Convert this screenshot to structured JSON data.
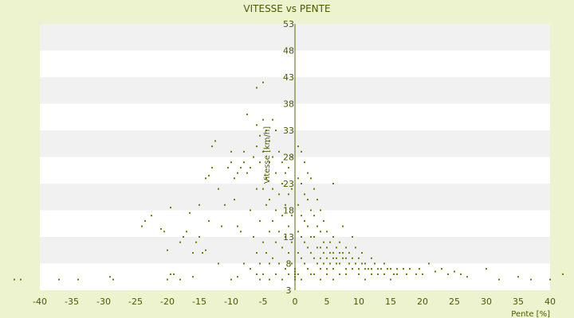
{
  "chart_data": {
    "type": "scatter",
    "title": "VITESSE vs PENTE",
    "xlabel": "Pente [%]",
    "ylabel": "Vitesse [km/h]",
    "xlim": [
      -40,
      42
    ],
    "ylim": [
      3,
      53
    ],
    "xticks": [
      -40,
      -35,
      -30,
      -25,
      -20,
      -15,
      -10,
      -5,
      0,
      5,
      10,
      15,
      20,
      25,
      30,
      35,
      40
    ],
    "yticks": [
      3,
      8,
      13,
      18,
      23,
      28,
      33,
      38,
      43,
      48,
      53
    ],
    "grid": "horizontal alternating bands",
    "legend": "none",
    "colors": {
      "background": "#eef3cf",
      "plot_band_light": "#ffffff",
      "plot_band_dark": "#f1f1f1",
      "point": "#6b7d00",
      "text": "#4a5a00",
      "axis": "#5a6a00"
    },
    "points": [
      [
        -44,
        5
      ],
      [
        -43,
        5
      ],
      [
        -37,
        5
      ],
      [
        -34,
        5
      ],
      [
        -29,
        5.5
      ],
      [
        -28.5,
        5
      ],
      [
        -24,
        15
      ],
      [
        -23.5,
        16
      ],
      [
        -22.5,
        17
      ],
      [
        -21,
        14.5
      ],
      [
        -20.5,
        14
      ],
      [
        -20,
        10.5
      ],
      [
        -19.5,
        18.5
      ],
      [
        -20,
        5
      ],
      [
        -19.5,
        6
      ],
      [
        -19,
        6
      ],
      [
        -18,
        12
      ],
      [
        -18,
        5
      ],
      [
        -17.5,
        13
      ],
      [
        -17,
        14
      ],
      [
        -16.5,
        17.5
      ],
      [
        -16,
        10
      ],
      [
        -16,
        5.5
      ],
      [
        -15.5,
        12
      ],
      [
        -15,
        13
      ],
      [
        -15,
        19
      ],
      [
        -14.5,
        10
      ],
      [
        -14,
        10.5
      ],
      [
        -14,
        24
      ],
      [
        -13.5,
        24.5
      ],
      [
        -13.5,
        16
      ],
      [
        -13,
        26
      ],
      [
        -13,
        30
      ],
      [
        -12.5,
        31
      ],
      [
        -12,
        22
      ],
      [
        -12,
        8
      ],
      [
        -11.5,
        15
      ],
      [
        -11,
        19
      ],
      [
        -10.5,
        26
      ],
      [
        -10,
        27
      ],
      [
        -10,
        29
      ],
      [
        -10,
        5
      ],
      [
        -9.5,
        20
      ],
      [
        -9.5,
        24
      ],
      [
        -9,
        25
      ],
      [
        -9,
        15
      ],
      [
        -9,
        5.5
      ],
      [
        -8.5,
        26
      ],
      [
        -8.5,
        14
      ],
      [
        -8,
        29
      ],
      [
        -8,
        27
      ],
      [
        -8,
        8
      ],
      [
        -7.5,
        36
      ],
      [
        -7.5,
        25
      ],
      [
        -7,
        18
      ],
      [
        -7,
        26
      ],
      [
        -7,
        7
      ],
      [
        -6.5,
        28
      ],
      [
        -6.5,
        13
      ],
      [
        -6,
        30
      ],
      [
        -6,
        34
      ],
      [
        -6,
        41
      ],
      [
        -6,
        22
      ],
      [
        -6,
        10
      ],
      [
        -6,
        6
      ],
      [
        -5.5,
        32
      ],
      [
        -5.5,
        27
      ],
      [
        -5.5,
        16
      ],
      [
        -5.5,
        8
      ],
      [
        -5.5,
        5
      ],
      [
        -5,
        35
      ],
      [
        -5,
        42
      ],
      [
        -5,
        29
      ],
      [
        -5,
        22
      ],
      [
        -5,
        12
      ],
      [
        -5,
        6
      ],
      [
        -4.5,
        33
      ],
      [
        -4.5,
        24
      ],
      [
        -4.5,
        19
      ],
      [
        -4.5,
        10
      ],
      [
        -4,
        31
      ],
      [
        -4,
        27
      ],
      [
        -4,
        20
      ],
      [
        -4,
        14
      ],
      [
        -4,
        8
      ],
      [
        -4,
        5
      ],
      [
        -3.5,
        35
      ],
      [
        -3.5,
        28
      ],
      [
        -3.5,
        22
      ],
      [
        -3.5,
        16
      ],
      [
        -3.5,
        9
      ],
      [
        -3,
        33
      ],
      [
        -3,
        25
      ],
      [
        -3,
        18
      ],
      [
        -3,
        12
      ],
      [
        -3,
        6
      ],
      [
        -2.5,
        29
      ],
      [
        -2.5,
        21
      ],
      [
        -2.5,
        14
      ],
      [
        -2.5,
        8
      ],
      [
        -2,
        27
      ],
      [
        -2,
        23
      ],
      [
        -2,
        17
      ],
      [
        -2,
        11
      ],
      [
        -2,
        5
      ],
      [
        -1.5,
        25
      ],
      [
        -1.5,
        19
      ],
      [
        -1.5,
        13
      ],
      [
        -1.5,
        7
      ],
      [
        -1,
        26
      ],
      [
        -1,
        21
      ],
      [
        -1,
        15
      ],
      [
        -1,
        10
      ],
      [
        -1,
        6
      ],
      [
        -0.5,
        28
      ],
      [
        -0.5,
        22
      ],
      [
        -0.5,
        17
      ],
      [
        -0.5,
        12
      ],
      [
        -0.5,
        8
      ],
      [
        0,
        6
      ],
      [
        0,
        5.5
      ],
      [
        0,
        5
      ],
      [
        0,
        6.5
      ],
      [
        0,
        7
      ],
      [
        0.5,
        30
      ],
      [
        0.5,
        24
      ],
      [
        0.5,
        19
      ],
      [
        0.5,
        14
      ],
      [
        0.5,
        10
      ],
      [
        0.5,
        6
      ],
      [
        1,
        29
      ],
      [
        1,
        23
      ],
      [
        1,
        17
      ],
      [
        1,
        13
      ],
      [
        1,
        9
      ],
      [
        1,
        5
      ],
      [
        1.5,
        27
      ],
      [
        1.5,
        21
      ],
      [
        1.5,
        16
      ],
      [
        1.5,
        12
      ],
      [
        1.5,
        8
      ],
      [
        2,
        25
      ],
      [
        2,
        20
      ],
      [
        2,
        15
      ],
      [
        2,
        11
      ],
      [
        2,
        7
      ],
      [
        2.5,
        24
      ],
      [
        2.5,
        18
      ],
      [
        2.5,
        13
      ],
      [
        2.5,
        10
      ],
      [
        2.5,
        6
      ],
      [
        3,
        22
      ],
      [
        3,
        17
      ],
      [
        3,
        13
      ],
      [
        3,
        9
      ],
      [
        3,
        6
      ],
      [
        3.5,
        20
      ],
      [
        3.5,
        15
      ],
      [
        3.5,
        11
      ],
      [
        3.5,
        8
      ],
      [
        4,
        18
      ],
      [
        4,
        14
      ],
      [
        4,
        11
      ],
      [
        4,
        9
      ],
      [
        4,
        7
      ],
      [
        4,
        5
      ],
      [
        4.5,
        16
      ],
      [
        4.5,
        12
      ],
      [
        4.5,
        10
      ],
      [
        4.5,
        8
      ],
      [
        5,
        14
      ],
      [
        5,
        11
      ],
      [
        5,
        9
      ],
      [
        5,
        7
      ],
      [
        5,
        6
      ],
      [
        5.5,
        12
      ],
      [
        5.5,
        10
      ],
      [
        5.5,
        8
      ],
      [
        6,
        23
      ],
      [
        6,
        13
      ],
      [
        6,
        10
      ],
      [
        6,
        9
      ],
      [
        6,
        7
      ],
      [
        6,
        5
      ],
      [
        6.5,
        11
      ],
      [
        6.5,
        9
      ],
      [
        6.5,
        8
      ],
      [
        7,
        12
      ],
      [
        7,
        10
      ],
      [
        7,
        8
      ],
      [
        7,
        6
      ],
      [
        7.5,
        15
      ],
      [
        7.5,
        10
      ],
      [
        7.5,
        9
      ],
      [
        8,
        11
      ],
      [
        8,
        9
      ],
      [
        8,
        7
      ],
      [
        8,
        6
      ],
      [
        8.5,
        10
      ],
      [
        8.5,
        8
      ],
      [
        9,
        13
      ],
      [
        9,
        9
      ],
      [
        9,
        7
      ],
      [
        9.5,
        11
      ],
      [
        9.5,
        8
      ],
      [
        10,
        9
      ],
      [
        10,
        7
      ],
      [
        10,
        6
      ],
      [
        10.5,
        10
      ],
      [
        10.5,
        8
      ],
      [
        11,
        8
      ],
      [
        11,
        7
      ],
      [
        11,
        5
      ],
      [
        11.5,
        7
      ],
      [
        12,
        9
      ],
      [
        12,
        7
      ],
      [
        12,
        6
      ],
      [
        12.5,
        8
      ],
      [
        13,
        7
      ],
      [
        13,
        6
      ],
      [
        13.5,
        7
      ],
      [
        14,
        8
      ],
      [
        14,
        6
      ],
      [
        14.5,
        7
      ],
      [
        15,
        7
      ],
      [
        15,
        5
      ],
      [
        15.5,
        6
      ],
      [
        16,
        7
      ],
      [
        16,
        6
      ],
      [
        17,
        7
      ],
      [
        17.5,
        6
      ],
      [
        18,
        7
      ],
      [
        19,
        6
      ],
      [
        19.5,
        7
      ],
      [
        20,
        6
      ],
      [
        21,
        8
      ],
      [
        22,
        6.5
      ],
      [
        23,
        7
      ],
      [
        24,
        6
      ],
      [
        25,
        6.5
      ],
      [
        26,
        6
      ],
      [
        27,
        5.5
      ],
      [
        30,
        7
      ],
      [
        32,
        5
      ],
      [
        35,
        5.5
      ],
      [
        37,
        5
      ],
      [
        40,
        5
      ],
      [
        42,
        6
      ]
    ]
  }
}
